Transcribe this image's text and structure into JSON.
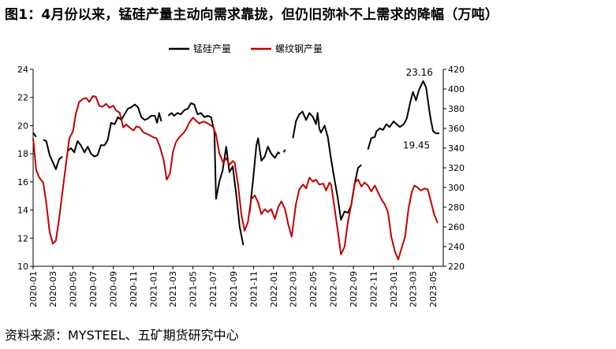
{
  "figure": {
    "title": "图1：4月份以来，锰硅产量主动向需求靠拢，但仍旧弥补不上需求的降幅（万吨）",
    "source": "资料来源：MYSTEEL、五矿期货研究中心"
  },
  "chart_data": {
    "type": "line",
    "title": "",
    "xlabel": "",
    "ylabel": "",
    "x_ticks": [
      "2020-01",
      "2020-03",
      "2020-05",
      "2020-07",
      "2020-09",
      "2020-11",
      "2021-01",
      "2021-03",
      "2021-05",
      "2021-07",
      "2021-09",
      "2021-11",
      "2022-01",
      "2022-03",
      "2022-05",
      "2022-07",
      "2022-09",
      "2022-11",
      "2023-01",
      "2023-03",
      "2023-05"
    ],
    "y_left": {
      "lim": [
        10,
        24
      ],
      "ticks": [
        10,
        12,
        14,
        16,
        18,
        20,
        22,
        24
      ]
    },
    "y_right": {
      "lim": [
        220,
        420
      ],
      "ticks": [
        220,
        240,
        260,
        280,
        300,
        320,
        340,
        360,
        380,
        400,
        420
      ]
    },
    "legend": {
      "position": "top"
    },
    "colors": {
      "manganese_silicon": "#000000",
      "rebar": "#c00000"
    },
    "annotations": [
      {
        "text": "23.16",
        "x": "2023-04-01",
        "y": 23.16,
        "axis": "left"
      },
      {
        "text": "19.45",
        "x": "2023-05-10",
        "y": 19.45,
        "axis": "left"
      }
    ],
    "series": [
      {
        "name": "锰硅产量",
        "axis": "left",
        "points": [
          [
            "2020-01-01",
            19.5
          ],
          [
            "2020-01-10",
            19.2
          ],
          [
            null,
            null
          ],
          [
            "2020-02-01",
            19.0
          ],
          [
            "2020-02-10",
            18.9
          ],
          [
            "2020-02-20",
            17.9
          ],
          [
            "2020-03-01",
            17.4
          ],
          [
            "2020-03-10",
            16.9
          ],
          [
            "2020-03-20",
            17.6
          ],
          [
            "2020-03-30",
            17.8
          ],
          [
            null,
            null
          ],
          [
            "2020-04-15",
            18.2
          ],
          [
            "2020-04-25",
            18.4
          ],
          [
            "2020-05-05",
            18.1
          ],
          [
            "2020-05-15",
            18.9
          ],
          [
            "2020-05-25",
            18.6
          ],
          [
            "2020-06-05",
            18.1
          ],
          [
            "2020-06-15",
            18.5
          ],
          [
            "2020-06-25",
            18.0
          ],
          [
            "2020-07-05",
            17.8
          ],
          [
            "2020-07-15",
            17.9
          ],
          [
            "2020-07-25",
            18.6
          ],
          [
            "2020-08-05",
            18.6
          ],
          [
            "2020-08-15",
            19.0
          ],
          [
            "2020-08-25",
            20.2
          ],
          [
            "2020-09-05",
            20.1
          ],
          [
            "2020-09-15",
            20.6
          ],
          [
            "2020-09-25",
            20.4
          ],
          [
            "2020-10-05",
            20.8
          ],
          [
            "2020-10-15",
            21.2
          ],
          [
            "2020-10-25",
            21.3
          ],
          [
            "2020-11-05",
            21.5
          ],
          [
            "2020-11-15",
            21.3
          ],
          [
            "2020-11-25",
            20.6
          ],
          [
            "2020-12-05",
            20.4
          ],
          [
            "2020-12-15",
            20.5
          ],
          [
            "2020-12-25",
            20.7
          ],
          [
            "2021-01-05",
            20.7
          ],
          [
            "2021-01-12",
            20.2
          ],
          [
            "2021-01-18",
            20.9
          ],
          [
            "2021-01-25",
            20.3
          ],
          [
            null,
            null
          ],
          [
            "2021-02-15",
            20.7
          ],
          [
            "2021-02-25",
            20.9
          ],
          [
            "2021-03-05",
            20.7
          ],
          [
            "2021-03-15",
            20.9
          ],
          [
            "2021-03-25",
            20.8
          ],
          [
            "2021-04-05",
            21.1
          ],
          [
            "2021-04-15",
            21.2
          ],
          [
            "2021-04-25",
            21.6
          ],
          [
            "2021-05-05",
            21.5
          ],
          [
            "2021-05-15",
            20.8
          ],
          [
            "2021-05-25",
            20.9
          ],
          [
            "2021-06-05",
            20.6
          ],
          [
            "2021-06-15",
            20.7
          ],
          [
            "2021-06-25",
            20.6
          ],
          [
            "2021-07-05",
            19.6
          ],
          [
            "2021-07-10",
            14.8
          ],
          [
            "2021-07-20",
            16.0
          ],
          [
            "2021-07-30",
            16.8
          ],
          [
            "2021-08-10",
            18.5
          ],
          [
            "2021-08-20",
            16.7
          ],
          [
            "2021-08-30",
            17.1
          ],
          [
            "2021-09-10",
            15.0
          ],
          [
            "2021-09-20",
            12.8
          ],
          [
            "2021-10-01",
            11.5
          ],
          [
            null,
            null
          ],
          [
            "2021-10-20",
            13.8
          ],
          [
            "2021-10-30",
            16.0
          ],
          [
            "2021-11-10",
            18.6
          ],
          [
            "2021-11-15",
            19.1
          ],
          [
            "2021-11-25",
            17.5
          ],
          [
            "2021-12-05",
            17.8
          ],
          [
            "2021-12-15",
            18.5
          ],
          [
            "2021-12-25",
            18.0
          ],
          [
            "2022-01-05",
            17.7
          ],
          [
            "2022-01-15",
            18.1
          ],
          [
            "2022-01-20",
            18.0
          ],
          [
            null,
            null
          ],
          [
            "2022-02-01",
            18.1
          ],
          [
            "2022-02-05",
            18.3
          ],
          [
            null,
            null
          ],
          [
            "2022-03-01",
            19.1
          ],
          [
            "2022-03-10",
            20.3
          ],
          [
            "2022-03-20",
            20.8
          ],
          [
            "2022-03-30",
            21.0
          ],
          [
            "2022-04-10",
            20.4
          ],
          [
            "2022-04-20",
            20.9
          ],
          [
            "2022-05-01",
            20.6
          ],
          [
            "2022-05-10",
            20.1
          ],
          [
            "2022-05-15",
            20.9
          ],
          [
            "2022-05-20",
            19.8
          ],
          [
            "2022-05-25",
            19.5
          ],
          [
            "2022-06-05",
            20.0
          ],
          [
            "2022-06-15",
            19.2
          ],
          [
            "2022-06-25",
            17.6
          ],
          [
            "2022-07-05",
            16.2
          ],
          [
            "2022-07-15",
            14.9
          ],
          [
            "2022-07-25",
            13.3
          ],
          [
            "2022-08-05",
            13.9
          ],
          [
            "2022-08-15",
            13.8
          ],
          [
            "2022-08-25",
            14.3
          ],
          [
            "2022-09-05",
            15.9
          ],
          [
            "2022-09-15",
            17.0
          ],
          [
            "2022-09-25",
            17.2
          ],
          [
            null,
            null
          ],
          [
            "2022-10-15",
            18.3
          ],
          [
            "2022-10-25",
            19.1
          ],
          [
            "2022-11-05",
            19.2
          ],
          [
            "2022-11-10",
            19.6
          ],
          [
            "2022-11-20",
            19.8
          ],
          [
            "2022-11-30",
            19.7
          ],
          [
            "2022-12-10",
            20.1
          ],
          [
            "2022-12-20",
            19.9
          ],
          [
            "2023-01-01",
            20.3
          ],
          [
            "2023-01-10",
            20.1
          ],
          [
            "2023-01-20",
            19.9
          ],
          [
            "2023-02-01",
            20.1
          ],
          [
            "2023-02-10",
            20.5
          ],
          [
            "2023-02-20",
            21.6
          ],
          [
            "2023-03-01",
            22.4
          ],
          [
            "2023-03-10",
            21.8
          ],
          [
            "2023-03-20",
            22.6
          ],
          [
            "2023-04-01",
            23.16
          ],
          [
            "2023-04-10",
            22.7
          ],
          [
            "2023-04-20",
            21.0
          ],
          [
            "2023-04-25",
            20.3
          ],
          [
            "2023-05-01",
            19.6
          ],
          [
            "2023-05-10",
            19.45
          ],
          [
            "2023-05-20",
            19.45
          ]
        ]
      },
      {
        "name": "螺纹钢产量",
        "axis": "right",
        "points": [
          [
            "2020-01-01",
            350
          ],
          [
            "2020-01-10",
            318
          ],
          [
            "2020-01-20",
            310
          ],
          [
            "2020-02-01",
            305
          ],
          [
            "2020-02-10",
            284
          ],
          [
            "2020-02-20",
            255
          ],
          [
            "2020-03-01",
            243
          ],
          [
            "2020-03-10",
            246
          ],
          [
            "2020-03-20",
            268
          ],
          [
            "2020-04-01",
            300
          ],
          [
            "2020-04-10",
            324
          ],
          [
            "2020-04-20",
            350
          ],
          [
            "2020-05-01",
            357
          ],
          [
            "2020-05-10",
            375
          ],
          [
            "2020-05-20",
            387
          ],
          [
            "2020-06-01",
            390
          ],
          [
            "2020-06-10",
            391
          ],
          [
            "2020-06-20",
            387
          ],
          [
            "2020-07-01",
            393
          ],
          [
            "2020-07-10",
            392
          ],
          [
            "2020-07-20",
            383
          ],
          [
            "2020-07-30",
            382
          ],
          [
            "2020-08-10",
            385
          ],
          [
            "2020-08-20",
            381
          ],
          [
            "2020-09-01",
            383
          ],
          [
            "2020-09-10",
            378
          ],
          [
            "2020-09-20",
            376
          ],
          [
            "2020-10-01",
            361
          ],
          [
            "2020-10-10",
            364
          ],
          [
            "2020-10-20",
            361
          ],
          [
            "2020-11-01",
            358
          ],
          [
            "2020-11-10",
            362
          ],
          [
            "2020-11-20",
            361
          ],
          [
            "2020-12-01",
            356
          ],
          [
            "2020-12-15",
            354
          ],
          [
            "2021-01-01",
            351
          ],
          [
            "2021-01-10",
            350
          ],
          [
            "2021-01-20",
            342
          ],
          [
            "2021-02-01",
            328
          ],
          [
            "2021-02-10",
            308
          ],
          [
            "2021-02-20",
            314
          ],
          [
            "2021-03-01",
            336
          ],
          [
            "2021-03-10",
            346
          ],
          [
            "2021-03-20",
            351
          ],
          [
            "2021-04-01",
            355
          ],
          [
            "2021-04-10",
            359
          ],
          [
            "2021-04-20",
            366
          ],
          [
            "2021-05-01",
            371
          ],
          [
            "2021-05-10",
            368
          ],
          [
            "2021-05-20",
            365
          ],
          [
            "2021-06-01",
            367
          ],
          [
            "2021-06-10",
            366
          ],
          [
            "2021-06-20",
            364
          ],
          [
            "2021-06-30",
            362
          ],
          [
            "2021-07-10",
            354
          ],
          [
            "2021-07-20",
            335
          ],
          [
            "2021-08-01",
            325
          ],
          [
            "2021-08-10",
            330
          ],
          [
            "2021-08-20",
            323
          ],
          [
            "2021-08-30",
            327
          ],
          [
            "2021-09-05",
            325
          ],
          [
            "2021-09-15",
            303
          ],
          [
            "2021-09-25",
            273
          ],
          [
            "2021-10-05",
            256
          ],
          [
            "2021-10-15",
            265
          ],
          [
            "2021-10-25",
            288
          ],
          [
            "2021-11-05",
            292
          ],
          [
            "2021-11-15",
            285
          ],
          [
            "2021-11-25",
            273
          ],
          [
            "2021-12-05",
            278
          ],
          [
            "2021-12-15",
            275
          ],
          [
            "2021-12-25",
            278
          ],
          [
            "2022-01-05",
            268
          ],
          [
            "2022-01-15",
            280
          ],
          [
            "2022-01-25",
            286
          ],
          [
            "2022-02-05",
            278
          ],
          [
            "2022-02-15",
            262
          ],
          [
            "2022-02-25",
            250
          ],
          [
            "2022-03-10",
            283
          ],
          [
            "2022-03-20",
            298
          ],
          [
            "2022-04-01",
            303
          ],
          [
            "2022-04-10",
            299
          ],
          [
            "2022-04-20",
            310
          ],
          [
            "2022-05-01",
            306
          ],
          [
            "2022-05-10",
            308
          ],
          [
            "2022-05-20",
            303
          ],
          [
            "2022-06-01",
            304
          ],
          [
            "2022-06-10",
            297
          ],
          [
            "2022-06-20",
            305
          ],
          [
            "2022-06-25",
            303
          ],
          [
            "2022-07-05",
            280
          ],
          [
            "2022-07-15",
            257
          ],
          [
            "2022-07-25",
            232
          ],
          [
            "2022-08-05",
            240
          ],
          [
            "2022-08-15",
            265
          ],
          [
            "2022-08-25",
            282
          ],
          [
            "2022-09-05",
            305
          ],
          [
            "2022-09-15",
            308
          ],
          [
            "2022-09-25",
            301
          ],
          [
            "2022-10-05",
            305
          ],
          [
            "2022-10-15",
            302
          ],
          [
            "2022-10-25",
            296
          ],
          [
            "2022-11-05",
            302
          ],
          [
            "2022-11-15",
            295
          ],
          [
            "2022-11-25",
            288
          ],
          [
            "2022-12-05",
            283
          ],
          [
            "2022-12-15",
            275
          ],
          [
            "2022-12-25",
            250
          ],
          [
            "2023-01-05",
            235
          ],
          [
            "2023-01-15",
            227
          ],
          [
            "2023-01-25",
            238
          ],
          [
            "2023-02-05",
            250
          ],
          [
            "2023-02-15",
            278
          ],
          [
            "2023-02-25",
            295
          ],
          [
            "2023-03-05",
            302
          ],
          [
            "2023-03-15",
            300
          ],
          [
            "2023-03-25",
            297
          ],
          [
            "2023-04-05",
            299
          ],
          [
            "2023-04-15",
            298
          ],
          [
            "2023-04-25",
            285
          ],
          [
            "2023-05-05",
            272
          ],
          [
            "2023-05-15",
            264
          ]
        ]
      }
    ]
  }
}
